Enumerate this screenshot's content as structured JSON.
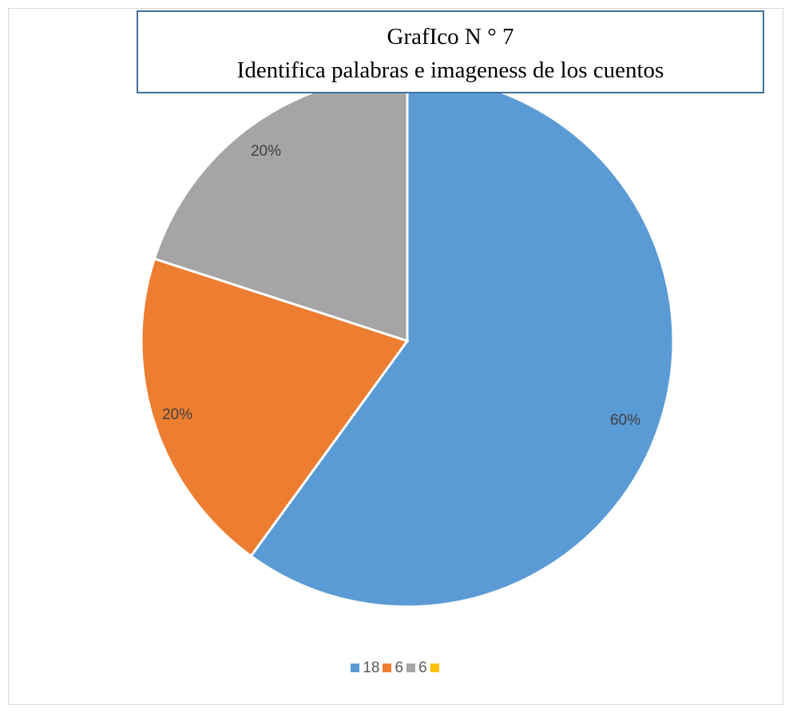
{
  "chart_data": {
    "type": "pie",
    "title_line1": "GrafIco N ° 7",
    "title_line2": "Identifica palabras e imageness de los cuentos",
    "categories": [
      "18",
      "6",
      "6",
      ""
    ],
    "values": [
      18,
      6,
      6,
      0
    ],
    "labels": [
      "60%",
      "20%",
      "20%",
      ""
    ],
    "colors": [
      "#5b9bd5",
      "#ed7d31",
      "#a5a5a5",
      "#ffc000"
    ],
    "legend_position": "bottom"
  }
}
